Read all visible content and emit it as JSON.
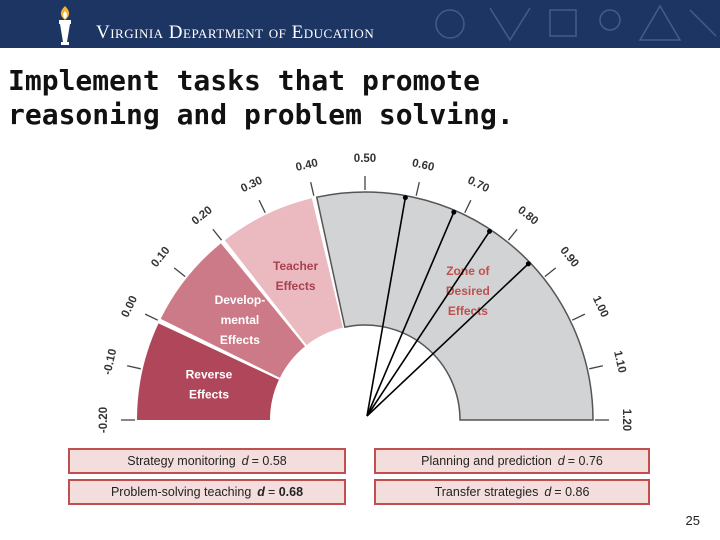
{
  "header": {
    "org_title": "Virginia Department of Education",
    "logo_icon": "torch-icon"
  },
  "slide": {
    "title_line1": "Implement tasks that promote",
    "title_line2": "reasoning and problem solving."
  },
  "gauge": {
    "zones": [
      {
        "label_line1": "Reverse",
        "label_line2": "Effects",
        "range": [
          -0.2,
          0.0
        ],
        "color": "#b0465a"
      },
      {
        "label_line1": "Develop-",
        "label_line2": "mental",
        "label_line3": "Effects",
        "range": [
          0.0,
          0.2
        ],
        "color": "#cc7a87"
      },
      {
        "label_line1": "Teacher",
        "label_line2": "Effects",
        "range": [
          0.2,
          0.4
        ],
        "color": "#ebbac0"
      },
      {
        "label_line1": "Zone of",
        "label_line2": "Desired",
        "label_line3": "Effects",
        "range": [
          0.4,
          1.2
        ],
        "color": "#d1d3d4"
      }
    ],
    "ticks": [
      "-0.20",
      "-0.10",
      "0.00",
      "0.10",
      "0.20",
      "0.30",
      "0.40",
      "0.50",
      "0.60",
      "0.70",
      "0.80",
      "0.90",
      "1.00",
      "1.10",
      "1.20"
    ],
    "needles": [
      0.58,
      0.68,
      0.76,
      0.86
    ]
  },
  "effects": [
    {
      "label": "Strategy monitoring",
      "d": "d",
      "eq": "=",
      "value": "0.58",
      "bold": false
    },
    {
      "label": "Problem-solving teaching",
      "d": "d",
      "eq": "=",
      "value": "0.68",
      "bold": true
    },
    {
      "label": "Planning and prediction",
      "d": "d",
      "eq": "=",
      "value": "0.76",
      "bold": false
    },
    {
      "label": "Transfer strategies",
      "d": "d",
      "eq": "=",
      "value": "0.86",
      "bold": false
    }
  ],
  "footer": {
    "page_number": "25"
  }
}
